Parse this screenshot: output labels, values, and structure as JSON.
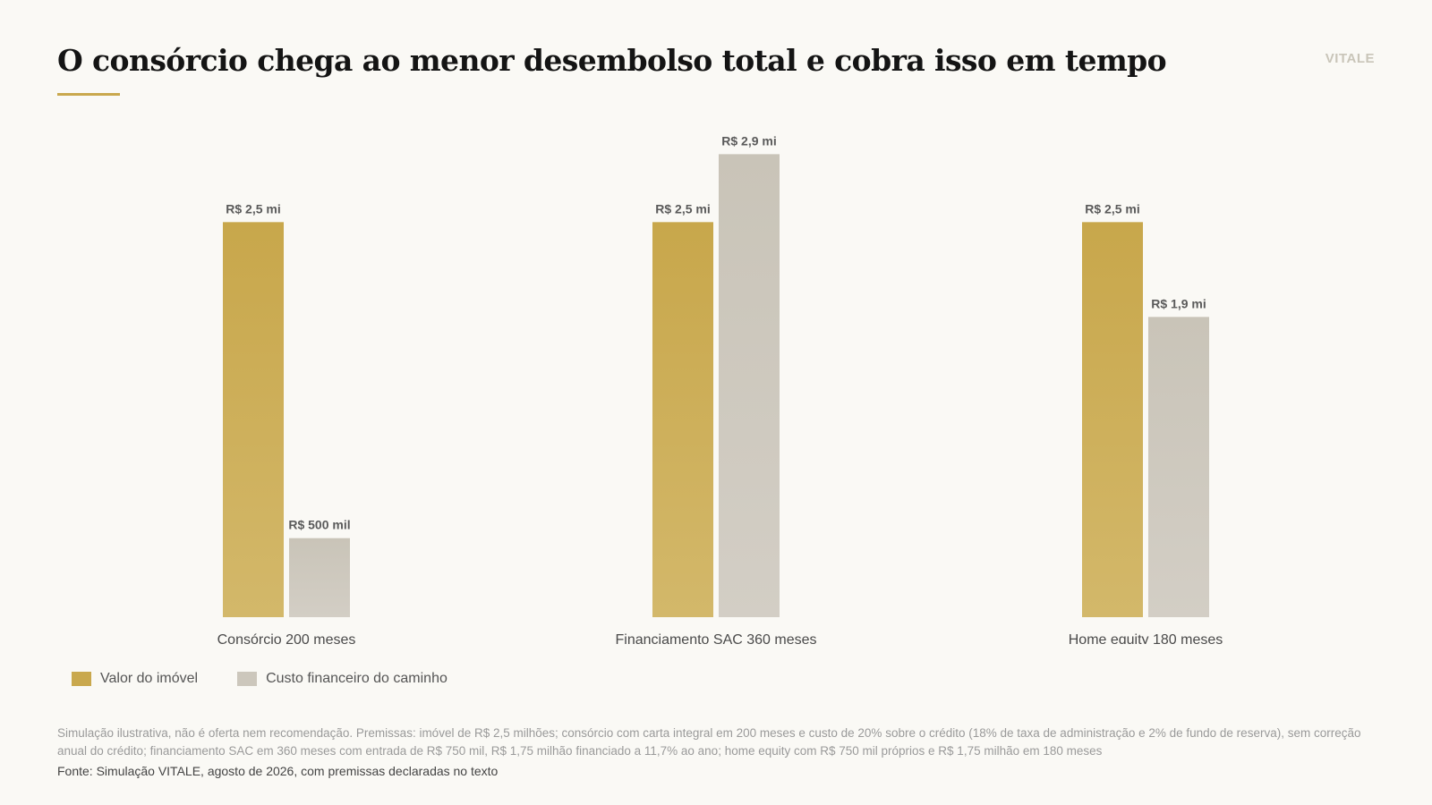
{
  "header": {
    "title": "O consórcio chega ao menor desembolso total e cobra isso em tempo",
    "brand": "VITALE"
  },
  "colors": {
    "accent": "#c9a84d",
    "property_value": "#c9a84d",
    "financial_cost": "#ccc7bc",
    "background": "#faf9f5"
  },
  "chart_data": {
    "type": "bar",
    "unit": "R$ milhões",
    "categories": [
      "Consórcio 200 meses",
      "Financiamento SAC 360 meses",
      "Home equity 180 meses"
    ],
    "series": [
      {
        "name": "Valor do imóvel",
        "values": [
          2.5,
          2.5,
          2.5
        ],
        "labels": [
          "R$ 2,5 mi",
          "R$ 2,5 mi",
          "R$ 2,5 mi"
        ]
      },
      {
        "name": "Custo financeiro do caminho",
        "values": [
          0.5,
          2.93,
          1.9
        ],
        "labels": [
          "R$ 500 mil",
          "R$ 2,9 mi",
          "R$ 1,9 mi"
        ]
      }
    ],
    "ylim": [
      0,
      3.0
    ],
    "grid": false,
    "legend_position": "bottom-left"
  },
  "footer": {
    "note": "Simulação ilustrativa, não é oferta nem recomendação. Premissas: imóvel de R$ 2,5 milhões; consórcio com carta integral em 200 meses e custo de 20% sobre o crédito (18% de taxa de administração e 2% de fundo de reserva), sem correção anual do crédito; financiamento SAC em 360 meses com entrada de R$ 750 mil, R$ 1,75 milhão financiado a 11,7% ao ano; home equity com R$ 750 mil próprios e R$ 1,75 milhão em 180 meses",
    "source": "Fonte: Simulação VITALE, agosto de 2026, com premissas declaradas no texto"
  }
}
